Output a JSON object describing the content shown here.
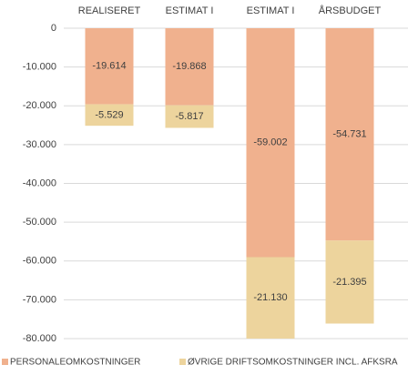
{
  "chart_data": {
    "type": "stacked_bar",
    "categories": [
      "REALISERET",
      "ESTIMAT I",
      "ESTIMAT I",
      "ÅRSBUDGET"
    ],
    "series": [
      {
        "name": "PERSONALEOMKOSTNINGER",
        "color": "#f0b18e",
        "values": [
          -19614,
          -19868,
          -59002,
          -54731
        ],
        "value_labels": [
          "-19.614",
          "-19.868",
          "-59.002",
          "-54.731"
        ]
      },
      {
        "name": "ØVRIGE DRIFTSOMKOSTNINGER INCL. AFKSRA",
        "color": "#edd49d",
        "values": [
          -5529,
          -5817,
          -21130,
          -21395
        ],
        "value_labels": [
          "-5.529",
          "-5.817",
          "-21.130",
          "-21.395"
        ]
      }
    ],
    "ylim": [
      -80000,
      0
    ],
    "yticks": [
      0,
      {
        "value": -10000,
        "label": "-10.000"
      },
      {
        "value": -20000,
        "label": "-20.000"
      },
      {
        "value": -30000,
        "label": "-30.000"
      },
      {
        "value": -40000,
        "label": "-40.000"
      },
      {
        "value": -50000,
        "label": "-50.000"
      },
      {
        "value": -60000,
        "label": "-60.000"
      },
      {
        "value": -70000,
        "label": "-70.000"
      },
      {
        "value": -80000,
        "label": "-80.000"
      }
    ],
    "grid": true,
    "legend": "bottom"
  }
}
